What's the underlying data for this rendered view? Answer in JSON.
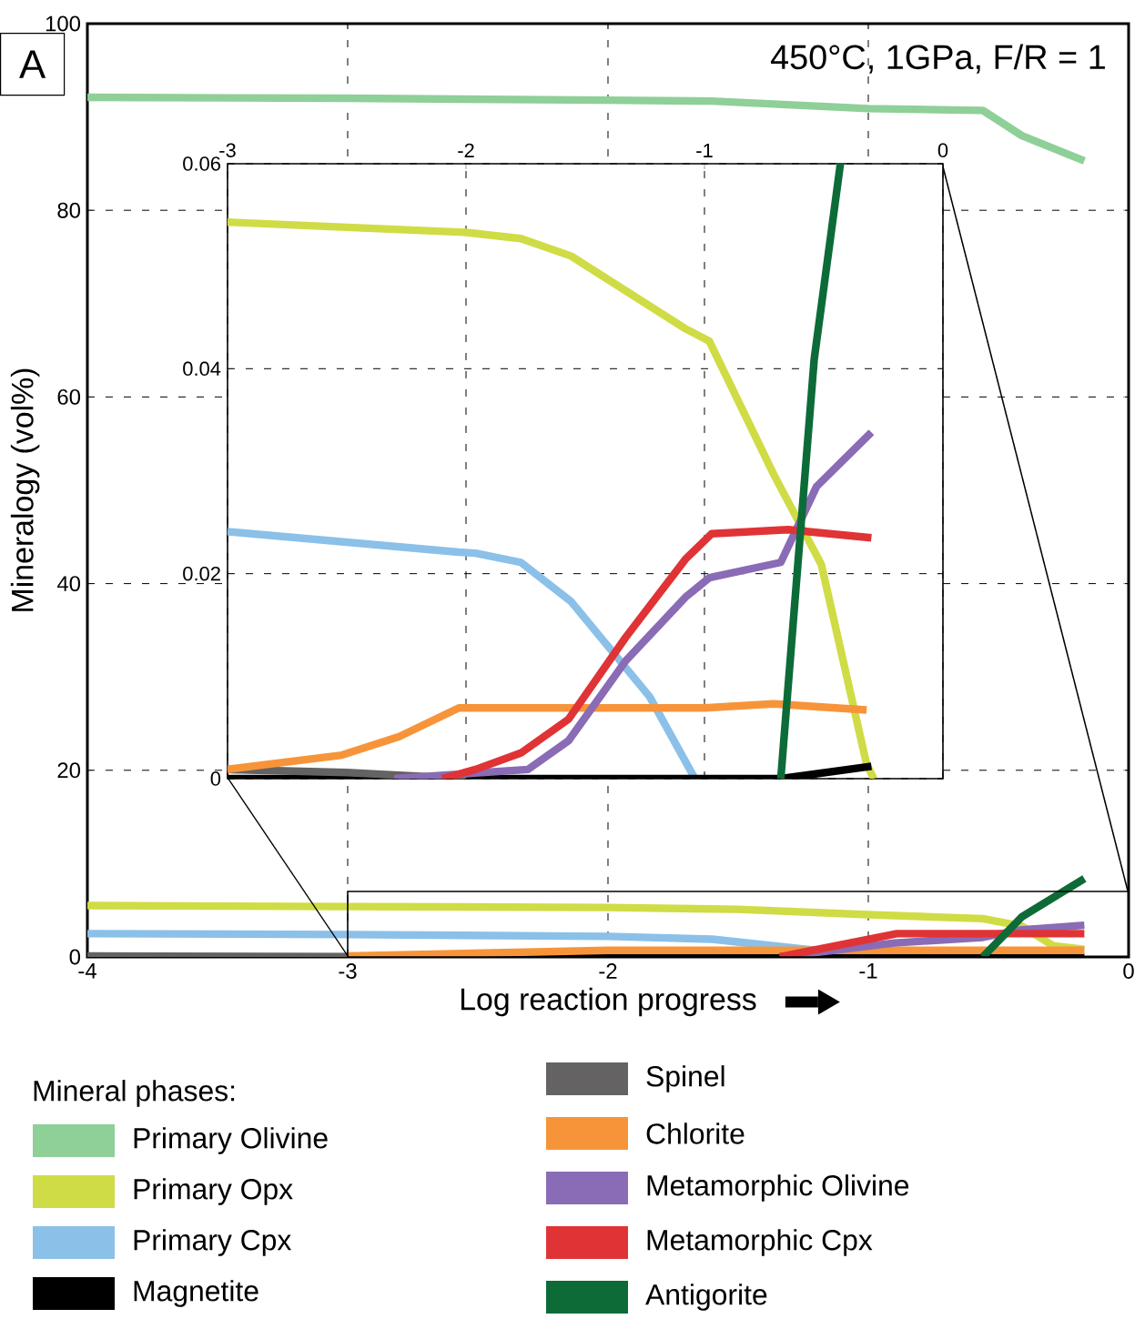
{
  "chart_data": [
    {
      "type": "line",
      "title": "A",
      "xlabel": "Log reaction progress",
      "ylabel": "Mineralogy (vol%)",
      "legend_title": "Mineral phases:",
      "annotations": [
        "450°C, 1GPa, F/R = 1"
      ],
      "xlim": [
        -4,
        0
      ],
      "ylim": [
        0,
        100
      ],
      "xticks": [
        -4,
        -3,
        -2,
        -1,
        0
      ],
      "yticks": [
        0,
        20,
        40,
        60,
        80,
        100
      ],
      "grid": true,
      "legend": "bottom",
      "series": [
        {
          "name": "Primary Olivine",
          "color": "#8fcf98",
          "x": [
            -4,
            -3,
            -2,
            -1.6,
            -1,
            -0.56,
            -0.41,
            -0.17
          ],
          "values": [
            92.1,
            92.0,
            91.8,
            91.7,
            90.9,
            90.7,
            88.0,
            85.3
          ]
        },
        {
          "name": "Primary Opx",
          "color": "#cfdc45",
          "x": [
            -4,
            -3,
            -2,
            -1.5,
            -0.98,
            -0.56,
            -0.41,
            -0.29,
            -0.17
          ],
          "values": [
            5.5,
            5.4,
            5.3,
            5.1,
            4.5,
            4.1,
            3.3,
            1.2,
            0.8
          ]
        },
        {
          "name": "Primary Cpx",
          "color": "#8bc0e8",
          "x": [
            -4,
            -3,
            -2,
            -1.6,
            -1.3,
            -1.0
          ],
          "values": [
            2.5,
            2.4,
            2.2,
            1.9,
            1.0,
            0.1
          ]
        },
        {
          "name": "Magnetite",
          "color": "#000000",
          "x": [
            -4,
            -0.17
          ],
          "values": [
            0,
            0
          ]
        },
        {
          "name": "Spinel",
          "color": "#646262",
          "x": [
            -4,
            -3
          ],
          "values": [
            0.1,
            0
          ]
        },
        {
          "name": "Chlorite",
          "color": "#f7943a",
          "x": [
            -3,
            -2,
            -0.17
          ],
          "values": [
            0.1,
            0.7,
            0.7
          ]
        },
        {
          "name": "Metamorphic Olivine",
          "color": "#8a6bb5",
          "x": [
            -1.34,
            -0.9,
            -0.56,
            -0.41,
            -0.17
          ],
          "values": [
            0,
            1.5,
            2.1,
            2.9,
            3.4
          ]
        },
        {
          "name": "Metamorphic Cpx",
          "color": "#e03336",
          "x": [
            -1.34,
            -0.89,
            -0.17
          ],
          "values": [
            0,
            2.5,
            2.5
          ]
        },
        {
          "name": "Antigorite",
          "color": "#0d6b38",
          "x": [
            -0.56,
            -0.41,
            -0.17
          ],
          "values": [
            0,
            4.3,
            8.4
          ]
        }
      ]
    },
    {
      "type": "line",
      "xlim": [
        -3,
        0
      ],
      "ylim": [
        0,
        0.06
      ],
      "xticks": [
        -3,
        -2,
        -1,
        0
      ],
      "yticks": [
        0,
        0.02,
        0.04,
        0.06
      ],
      "grid": true,
      "series": [
        {
          "color": "#cfdc45",
          "x": [
            -3,
            -2,
            -1.77,
            -1.56,
            -1.08,
            -0.98,
            -0.71,
            -0.51,
            -0.32,
            -0.29
          ],
          "values": [
            0.0543,
            0.0533,
            0.0527,
            0.051,
            0.0439,
            0.0427,
            0.0297,
            0.0209,
            0.0014,
            0
          ]
        },
        {
          "color": "#8bc0e8",
          "x": [
            -3,
            -2.03,
            -1.96,
            -1.77,
            -1.56,
            -1.23,
            -1.04
          ],
          "values": [
            0.0241,
            0.0221,
            0.022,
            0.0211,
            0.0173,
            0.008,
            0
          ]
        },
        {
          "color": "#000000",
          "x": [
            -3,
            -0.68,
            -0.3
          ],
          "values": [
            0,
            0,
            0.0012
          ]
        },
        {
          "color": "#646262",
          "x": [
            -3,
            -2.5,
            -2
          ],
          "values": [
            0.0009,
            0.0006,
            0
          ]
        },
        {
          "color": "#f7943a",
          "x": [
            -3,
            -2.52,
            -2.28,
            -2.03,
            -1,
            -0.71,
            -0.32
          ],
          "values": [
            0.0009,
            0.0023,
            0.0041,
            0.0069,
            0.0069,
            0.0073,
            0.0067
          ]
        },
        {
          "color": "#8a6bb5",
          "x": [
            -2.3,
            -1.74,
            -1.57,
            -1.33,
            -1.08,
            -0.98,
            -0.68,
            -0.53,
            -0.3
          ],
          "values": [
            0,
            0.0009,
            0.0037,
            0.0115,
            0.0177,
            0.0196,
            0.0211,
            0.0285,
            0.0338
          ]
        },
        {
          "color": "#e03336",
          "x": [
            -2.1,
            -1.96,
            -1.77,
            -1.57,
            -1.33,
            -1.08,
            -0.97,
            -0.65,
            -0.3
          ],
          "values": [
            0,
            0.0009,
            0.0025,
            0.0058,
            0.0138,
            0.0214,
            0.0239,
            0.0243,
            0.0235
          ]
        },
        {
          "color": "#0d6b38",
          "x": [
            -0.68,
            -0.54,
            -0.43
          ],
          "values": [
            0,
            0.0409,
            0.06
          ]
        }
      ]
    }
  ]
}
